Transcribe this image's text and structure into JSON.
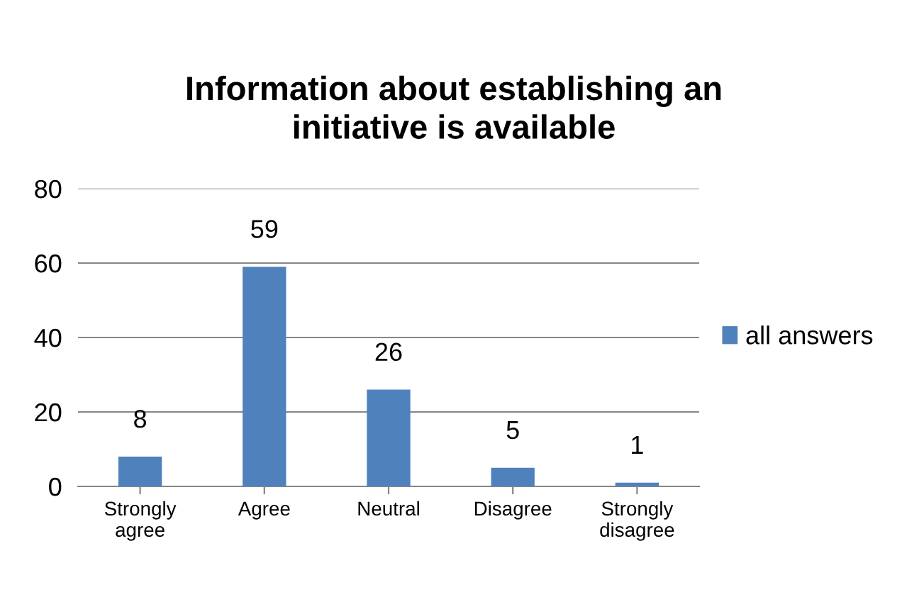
{
  "chart_data": {
    "type": "bar",
    "title": "Information about establishing an\ninitiative is available",
    "categories": [
      "Strongly\nagree",
      "Agree",
      "Neutral",
      "Disagree",
      "Strongly\ndisagree"
    ],
    "series": [
      {
        "name": "all answers",
        "color": "#4f81bd",
        "values": [
          8,
          59,
          26,
          5,
          1
        ]
      }
    ],
    "ylim": [
      0,
      80
    ],
    "yticks": [
      0,
      20,
      40,
      60,
      80
    ],
    "grid": "y",
    "legend": "right",
    "data_labels": true
  }
}
